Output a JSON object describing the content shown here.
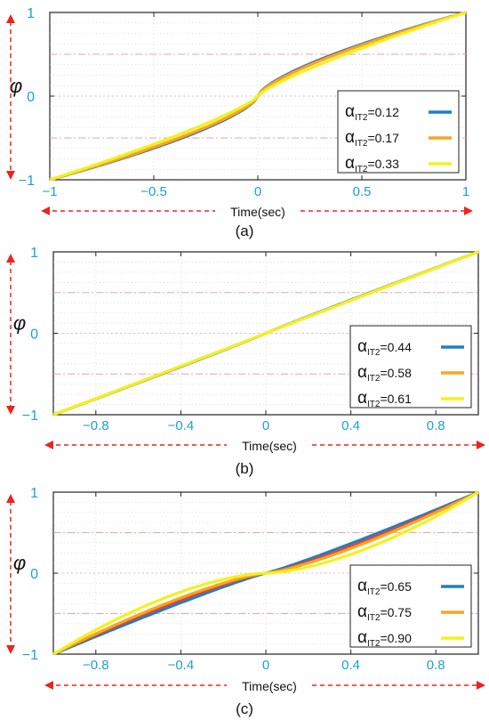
{
  "figure": {
    "panels": [
      "(a)",
      "(b)",
      "(c)"
    ]
  },
  "colors": {
    "axis_text": "#1aa3c8",
    "arrow": "#e8251f",
    "grid_red": "#e9a5a5",
    "grid_dot": "#c9c9c9",
    "series": [
      "#1f7fc4",
      "#f5a623",
      "#f2f21a"
    ],
    "series_mid": "#e8452c"
  },
  "chart_data": [
    {
      "type": "line",
      "panel_label": "(a)",
      "xlabel": "Time(sec)",
      "ylabel": "φ",
      "xlim": [
        -1,
        1
      ],
      "ylim": [
        -1,
        1
      ],
      "xticks": [
        -1,
        -0.5,
        0,
        0.5,
        1
      ],
      "xtick_labels": [
        "−1",
        "−0.5",
        "0",
        "0.5",
        "1"
      ],
      "yticks": [
        -1,
        0,
        1
      ],
      "ytick_labels": [
        "−1",
        "0",
        "1"
      ],
      "legend_position": "lower-right",
      "series": [
        {
          "name": "α",
          "sub": "IT2",
          "value": "=0.12",
          "alpha": 0.12,
          "curve": "fast",
          "x": [
            -1,
            -0.75,
            -0.5,
            -0.25,
            0,
            0.25,
            0.5,
            0.75,
            1
          ],
          "y": [
            -1,
            -0.8,
            -0.54,
            -0.29,
            0,
            0.29,
            0.54,
            0.8,
            1
          ]
        },
        {
          "name": "α",
          "sub": "IT2",
          "value": "=0.17",
          "alpha": 0.17,
          "curve": "fast",
          "x": [
            -1,
            -0.75,
            -0.5,
            -0.25,
            0,
            0.25,
            0.5,
            0.75,
            1
          ],
          "y": [
            -1,
            -0.77,
            -0.5,
            -0.27,
            0,
            0.27,
            0.5,
            0.77,
            1
          ]
        },
        {
          "name": "α",
          "sub": "IT2",
          "value": "=0.33",
          "alpha": 0.33,
          "curve": "fast",
          "x": [
            -1,
            -0.75,
            -0.5,
            -0.25,
            0,
            0.25,
            0.5,
            0.75,
            1
          ],
          "y": [
            -1,
            -0.72,
            -0.47,
            -0.24,
            0,
            0.24,
            0.47,
            0.72,
            1
          ]
        }
      ]
    },
    {
      "type": "line",
      "panel_label": "(b)",
      "xlabel": "Time(sec)",
      "ylabel": "φ",
      "xlim": [
        -1,
        1
      ],
      "ylim": [
        -1,
        1
      ],
      "xticks": [
        -0.8,
        -0.4,
        0,
        0.4,
        0.8
      ],
      "xtick_labels": [
        "−0.8",
        "−0.4",
        "0",
        "0.4",
        "0.8"
      ],
      "yticks": [
        -1,
        0,
        1
      ],
      "ytick_labels": [
        "−1",
        "0",
        "1"
      ],
      "legend_position": "lower-right",
      "series": [
        {
          "name": "α",
          "sub": "IT2",
          "value": "=0.44",
          "alpha": 0.44,
          "curve": "mild",
          "x": [
            -1,
            -0.8,
            -0.4,
            0,
            0.4,
            0.8,
            1
          ],
          "y": [
            -1,
            -0.82,
            -0.43,
            0,
            0.43,
            0.82,
            1
          ]
        },
        {
          "name": "α",
          "sub": "IT2",
          "value": "=0.58",
          "alpha": 0.58,
          "curve": "mild",
          "x": [
            -1,
            -0.8,
            -0.4,
            0,
            0.4,
            0.8,
            1
          ],
          "y": [
            -1,
            -0.8,
            -0.41,
            0,
            0.41,
            0.8,
            1
          ]
        },
        {
          "name": "α",
          "sub": "IT2",
          "value": "=0.61",
          "alpha": 0.61,
          "curve": "mild",
          "x": [
            -1,
            -0.8,
            -0.4,
            0,
            0.4,
            0.8,
            1
          ],
          "y": [
            -1,
            -0.78,
            -0.38,
            0,
            0.38,
            0.78,
            1
          ]
        }
      ]
    },
    {
      "type": "line",
      "panel_label": "(c)",
      "xlabel": "Time(sec)",
      "ylabel": "φ",
      "xlim": [
        -1,
        1
      ],
      "ylim": [
        -1,
        1
      ],
      "xticks": [
        -0.8,
        -0.4,
        0,
        0.4,
        0.8
      ],
      "xtick_labels": [
        "−0.8",
        "−0.4",
        "0",
        "0.4",
        "0.8"
      ],
      "yticks": [
        -1,
        0,
        1
      ],
      "ytick_labels": [
        "−1",
        "0",
        "1"
      ],
      "legend_position": "lower-right",
      "series": [
        {
          "name": "α",
          "sub": "IT2",
          "value": "=0.65",
          "alpha": 0.65,
          "curve": "slow",
          "x": [
            -1,
            -0.8,
            -0.4,
            0,
            0.4,
            0.8,
            1
          ],
          "y": [
            -1,
            -0.78,
            -0.38,
            0,
            0.38,
            0.78,
            1
          ]
        },
        {
          "name": "α",
          "sub": "IT2",
          "value": "=0.75",
          "alpha": 0.75,
          "curve": "slow",
          "x": [
            -1,
            -0.8,
            -0.4,
            0,
            0.4,
            0.8,
            1
          ],
          "y": [
            -1,
            -0.68,
            -0.33,
            0,
            0.33,
            0.68,
            1
          ]
        },
        {
          "name": "α",
          "sub": "IT2",
          "value": "=0.90",
          "alpha": 0.9,
          "curve": "slow",
          "x": [
            -1,
            -0.8,
            -0.4,
            0,
            0.4,
            0.8,
            1
          ],
          "y": [
            -1,
            -0.55,
            -0.25,
            0,
            0.25,
            0.55,
            1
          ]
        }
      ]
    }
  ]
}
